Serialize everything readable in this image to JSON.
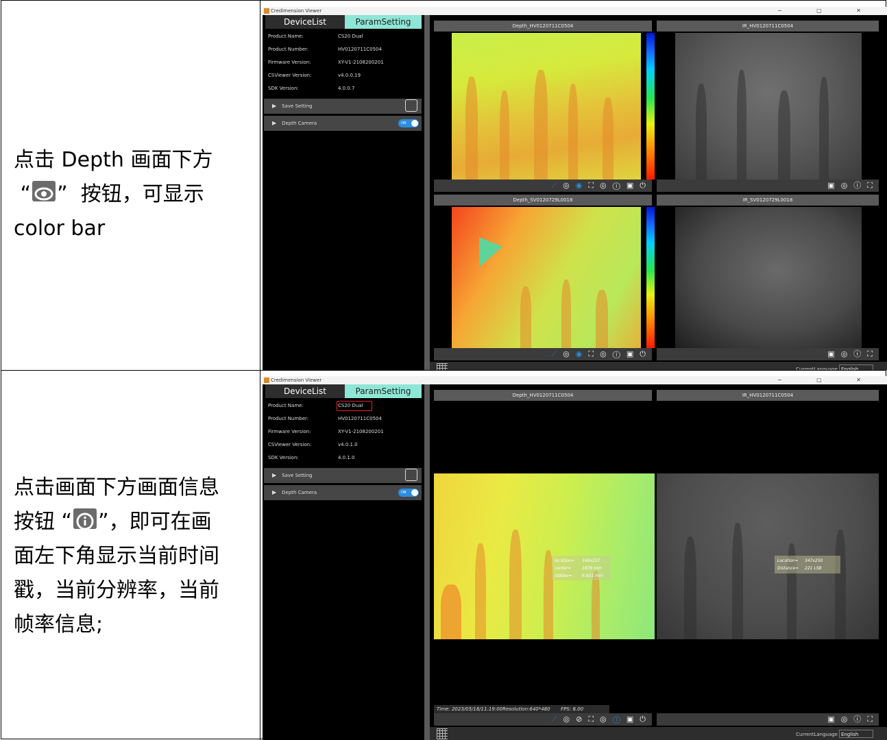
{
  "rows": [
    {
      "description": "点击 Depth 画面下方“”按钮，可显示 color bar",
      "desc_part1": "点击 Depth 画面下方",
      "desc_part2": "按钮，可显示",
      "desc_part3": "color bar",
      "inline_icon": "eye-icon"
    },
    {
      "desc_part1": "点击画面下方画面信息",
      "desc_part2a": "按钮",
      "desc_part2b": "，即可在画",
      "desc_part3": "面左下角显示当前时间",
      "desc_part4": "戳，当前分辨率，当前",
      "desc_part5": "帧率信息;",
      "inline_icon": "info-icon"
    }
  ],
  "app": {
    "title": "Credimension Viewer",
    "window_controls": [
      "−",
      "▢",
      "✕"
    ],
    "tabs": {
      "device_list": "DeviceList",
      "param_setting": "ParamSetting"
    },
    "info_labels": {
      "product_name": "Product Name:",
      "product_number": "Product Number:",
      "firmware_version": "Firmware Version:",
      "csviewer_version": "CSViewer Version:",
      "sdk_version": "SDK Version:"
    },
    "shot1_info": {
      "product_name": "CS20 Dual",
      "product_number": "HV0120711C0504",
      "firmware_version": "XY-V1-2108200201",
      "csviewer_version": "v4.0.0.19",
      "sdk_version": "4.0.0.7"
    },
    "shot2_info": {
      "product_name": "CS20 Dual",
      "product_number": "HV0120711C0504",
      "firmware_version": "XY-V1-2108200201",
      "csviewer_version": "v4.0.1.0",
      "sdk_version": "4.0.1.0"
    },
    "panels": {
      "save_setting": "Save Setting",
      "depth_camera": "Depth Camera",
      "toggle_on": "ON"
    },
    "current_language_label": "CurrentLanguage",
    "current_language_value": "English"
  },
  "shot1": {
    "headers": {
      "depth_top": "Depth_HV0120711C0504",
      "ir_top": "IR_HV0120711C0504",
      "depth_bottom": "Depth_SV0120729L0018",
      "ir_bottom": "IR_SV0120729L0018"
    }
  },
  "shot2": {
    "headers": {
      "depth_top": "Depth_HV0120711C0504",
      "ir_top": "IR_HV0120711C0504"
    },
    "depth_cursor": {
      "location_label": "location=",
      "location": "348x237",
      "center_label": "center=",
      "center": "1878 mm",
      "stddev_label": "stddev=",
      "stddev": "6.931 mm"
    },
    "ir_cursor": {
      "location_label": "Location=",
      "location": "347x250",
      "distance_label": "Distance=",
      "distance": "221 LSB"
    },
    "status": {
      "time_label": "Time:",
      "time": "2023/05/18/11:19:00",
      "resolution_label": "Resolution:",
      "resolution": "640*480",
      "fps_label": "FPS:",
      "fps": "8.00"
    }
  },
  "toolbar_depth_icons": [
    "pin-icon",
    "rotate-icon",
    "eye-icon",
    "fullscreen-icon",
    "record-icon",
    "info-icon",
    "save-icon",
    "power-icon"
  ],
  "toolbar_ir_icons": [
    "save-icon",
    "record-icon",
    "info-icon",
    "fullscreen-icon"
  ],
  "colors": {
    "accent": "#2a8de0",
    "tab_active": "#8ee6d6",
    "highlight": "#e22222"
  }
}
